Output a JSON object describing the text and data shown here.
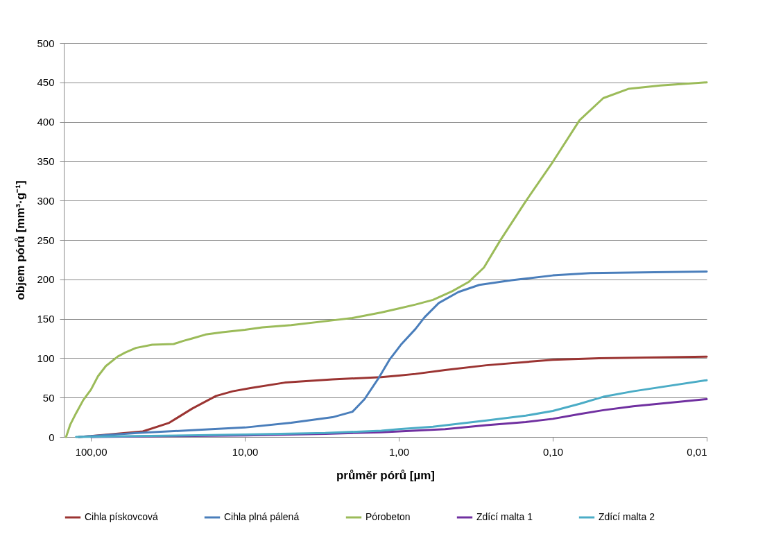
{
  "chart_data": {
    "type": "line",
    "xlabel": "průměr pórů [µm]",
    "ylabel": "objem pórů [mm³·g⁻¹]",
    "log": "x",
    "xlim": [
      150,
      0.01
    ],
    "xticks": [
      {
        "value": 100,
        "label": "100,00"
      },
      {
        "value": 10,
        "label": "10,00"
      },
      {
        "value": 1,
        "label": "1,00"
      },
      {
        "value": 0.1,
        "label": "0,10"
      },
      {
        "value": 0.01,
        "label": "0,01"
      }
    ],
    "ylim": [
      0,
      500
    ],
    "yticks": [
      0,
      50,
      100,
      150,
      200,
      250,
      300,
      350,
      400,
      450,
      500
    ],
    "grid": "y",
    "legend": "bottom",
    "marker": "none",
    "line_style": "solid",
    "series": [
      {
        "name": "Cihla pískovcová",
        "color": "#9b3432",
        "x": [
          120,
          100,
          46,
          31,
          22,
          15.4,
          12,
          9.2,
          5.5,
          2.7,
          1.3,
          1,
          0.78,
          0.5,
          0.27,
          0.1,
          0.05,
          0.01
        ],
        "values": [
          0,
          1,
          7,
          18,
          36,
          52,
          58,
          62,
          69,
          73,
          76,
          78,
          80,
          85,
          91,
          98,
          100,
          102
        ]
      },
      {
        "name": "Cihla plná pálená",
        "color": "#4a7ebb",
        "x": [
          120,
          50,
          20,
          10,
          5,
          2.7,
          2,
          1.67,
          1.36,
          1.15,
          0.96,
          0.78,
          0.68,
          0.55,
          0.41,
          0.3,
          0.185,
          0.1,
          0.057,
          0.01
        ],
        "values": [
          0,
          5,
          9,
          12,
          18,
          25,
          32,
          48,
          74,
          98,
          118,
          137,
          152,
          170,
          184,
          193,
          199,
          205,
          208,
          210
        ]
      },
      {
        "name": "Pórobeton",
        "color": "#9bbb59",
        "x": [
          145,
          136,
          125,
          112,
          100,
          90,
          80,
          67,
          60,
          51,
          40,
          29,
          25,
          22,
          18,
          14,
          10,
          7.7,
          5,
          2.7,
          2,
          1.3,
          1,
          0.78,
          0.6,
          0.45,
          0.35,
          0.28,
          0.22,
          0.15,
          0.1,
          0.067,
          0.047,
          0.032,
          0.02,
          0.01
        ],
        "values": [
          0,
          16,
          30,
          47,
          60,
          77,
          90,
          102,
          107,
          113,
          117,
          118,
          122,
          125,
          130,
          133,
          136,
          139,
          142,
          148,
          151,
          158,
          163,
          168,
          174,
          185,
          197,
          215,
          249,
          299,
          349,
          402,
          430,
          442,
          446,
          450
        ]
      },
      {
        "name": "Zdící malta 1",
        "color": "#7030a0",
        "x": [
          100,
          30,
          10,
          3,
          1.3,
          1,
          0.5,
          0.27,
          0.15,
          0.1,
          0.067,
          0.047,
          0.03,
          0.01
        ],
        "values": [
          0,
          1,
          2,
          4,
          6,
          7,
          10,
          15,
          19,
          23,
          29,
          34,
          39,
          48
        ]
      },
      {
        "name": "Zdící malta 2",
        "color": "#4bacc6",
        "x": [
          125,
          50,
          10,
          3,
          1.3,
          1,
          0.6,
          0.27,
          0.15,
          0.1,
          0.067,
          0.047,
          0.03,
          0.01
        ],
        "values": [
          0,
          1,
          3,
          5,
          8,
          10,
          13,
          21,
          27,
          33,
          42,
          51,
          58,
          72
        ]
      }
    ]
  }
}
